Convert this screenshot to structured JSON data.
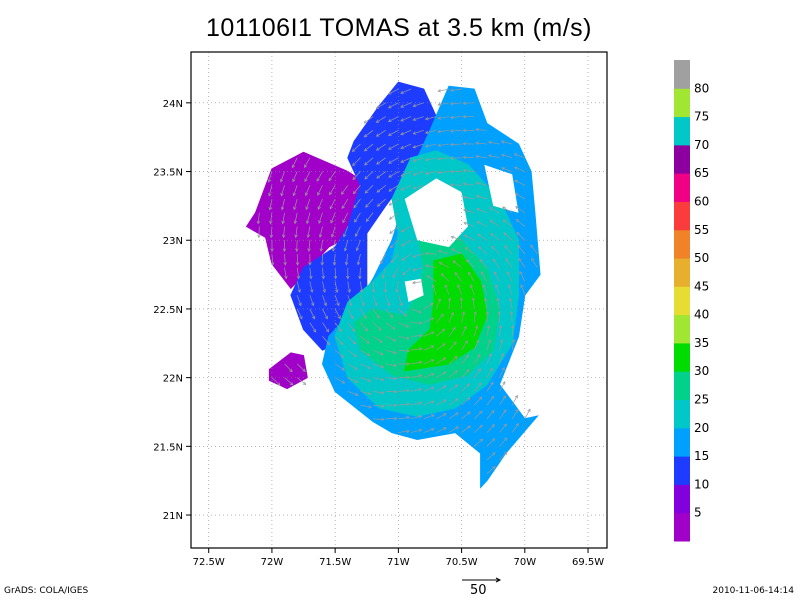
{
  "title": "101106I1 TOMAS at 3.5 km (m/s)",
  "footer": {
    "left": "GrADS: COLA/IGES",
    "right": "2010-11-06-14:14"
  },
  "reference_vector": {
    "label": "50",
    "magnitude": 50
  },
  "chart_data": {
    "type": "heatmap",
    "title": "101106I1 TOMAS at 3.5 km (m/s)",
    "xlabel": "",
    "ylabel": "",
    "x_ticks": [
      "72.5W",
      "72W",
      "71.5W",
      "71W",
      "70.5W",
      "70W",
      "69.5W"
    ],
    "x_tick_values": [
      -72.5,
      -72.0,
      -71.5,
      -71.0,
      -70.5,
      -70.0,
      -69.5
    ],
    "y_ticks": [
      "21N",
      "21.5N",
      "22N",
      "22.5N",
      "23N",
      "23.5N",
      "24N"
    ],
    "y_tick_values": [
      21.0,
      21.5,
      22.0,
      22.5,
      23.0,
      23.5,
      24.0
    ],
    "xlim": [
      -72.64,
      -69.35
    ],
    "ylim": [
      20.76,
      24.37
    ],
    "grid": true,
    "colorbar": {
      "labels": [
        "5",
        "10",
        "15",
        "20",
        "25",
        "30",
        "35",
        "40",
        "45",
        "50",
        "55",
        "60",
        "65",
        "70",
        "75",
        "80"
      ],
      "bins": [
        {
          "color": "#a000c8"
        },
        {
          "color": "#8200dc"
        },
        {
          "color": "#1e3cff"
        },
        {
          "color": "#00a0ff"
        },
        {
          "color": "#00c8c8"
        },
        {
          "color": "#00d28c"
        },
        {
          "color": "#00dc00"
        },
        {
          "color": "#a0e632"
        },
        {
          "color": "#e6dc32"
        },
        {
          "color": "#e6af2d"
        },
        {
          "color": "#f08228"
        },
        {
          "color": "#fa3c3c"
        },
        {
          "color": "#f00082"
        },
        {
          "color": "#8c00a0"
        },
        {
          "color": "#00c8c8"
        },
        {
          "color": "#a0e632"
        },
        {
          "color": "#a0a0a0"
        }
      ]
    },
    "regions": [
      {
        "name": "west-purple",
        "level": 5,
        "color": "#a000c8",
        "polygon": [
          [
            -72.13,
            23.2
          ],
          [
            -72.0,
            23.52
          ],
          [
            -71.75,
            23.64
          ],
          [
            -71.4,
            23.5
          ],
          [
            -71.2,
            23.38
          ],
          [
            -71.25,
            23.1
          ],
          [
            -71.55,
            22.95
          ],
          [
            -71.75,
            22.75
          ],
          [
            -71.85,
            22.65
          ],
          [
            -72.0,
            22.83
          ],
          [
            -72.05,
            23.02
          ],
          [
            -72.2,
            23.1
          ]
        ]
      },
      {
        "name": "south-purple",
        "level": 5,
        "color": "#a000c8",
        "polygon": [
          [
            -72.02,
            22.06
          ],
          [
            -71.85,
            22.18
          ],
          [
            -71.75,
            22.16
          ],
          [
            -71.72,
            22.0
          ],
          [
            -71.88,
            21.92
          ],
          [
            -72.02,
            21.98
          ]
        ]
      },
      {
        "name": "center-purple",
        "level": 5,
        "color": "#a000c8",
        "polygon": [
          [
            -71.02,
            22.62
          ],
          [
            -70.9,
            22.65
          ],
          [
            -70.85,
            22.52
          ],
          [
            -70.92,
            22.45
          ],
          [
            -71.03,
            22.48
          ]
        ]
      },
      {
        "name": "outer-blue",
        "level": 10,
        "color": "#1e3cff",
        "polygon": [
          [
            -71.15,
            23.98
          ],
          [
            -71.0,
            24.15
          ],
          [
            -70.8,
            24.1
          ],
          [
            -70.7,
            23.9
          ],
          [
            -70.6,
            23.7
          ],
          [
            -70.9,
            23.5
          ],
          [
            -71.1,
            23.25
          ],
          [
            -71.25,
            23.05
          ],
          [
            -71.25,
            22.55
          ],
          [
            -71.35,
            22.3
          ],
          [
            -71.6,
            22.2
          ],
          [
            -71.75,
            22.35
          ],
          [
            -71.85,
            22.6
          ],
          [
            -71.75,
            22.8
          ],
          [
            -71.5,
            22.95
          ],
          [
            -71.4,
            23.1
          ],
          [
            -71.3,
            23.4
          ],
          [
            -71.4,
            23.6
          ],
          [
            -71.35,
            23.72
          ]
        ]
      },
      {
        "name": "outer-lightblue",
        "level": 20,
        "color": "#00a0ff",
        "polygon": [
          [
            -70.6,
            24.12
          ],
          [
            -70.4,
            24.1
          ],
          [
            -70.3,
            23.85
          ],
          [
            -70.05,
            23.7
          ],
          [
            -69.95,
            23.5
          ],
          [
            -69.92,
            23.2
          ],
          [
            -69.88,
            22.75
          ],
          [
            -70.0,
            22.6
          ],
          [
            -70.05,
            22.3
          ],
          [
            -70.2,
            21.95
          ],
          [
            -70.0,
            21.7
          ],
          [
            -69.9,
            21.72
          ],
          [
            -70.15,
            21.45
          ],
          [
            -70.3,
            21.25
          ],
          [
            -70.35,
            21.2
          ],
          [
            -70.35,
            21.45
          ],
          [
            -70.55,
            21.6
          ],
          [
            -70.85,
            21.55
          ],
          [
            -71.05,
            21.6
          ],
          [
            -71.2,
            21.68
          ],
          [
            -71.5,
            21.9
          ],
          [
            -71.6,
            22.1
          ],
          [
            -71.55,
            22.3
          ],
          [
            -71.35,
            22.5
          ],
          [
            -71.2,
            22.72
          ],
          [
            -71.05,
            23.0
          ],
          [
            -70.95,
            23.3
          ],
          [
            -70.9,
            23.5
          ],
          [
            -70.75,
            23.8
          ]
        ]
      },
      {
        "name": "teal-band",
        "level": 25,
        "color": "#00c8c8",
        "polygon": [
          [
            -70.9,
            23.6
          ],
          [
            -70.7,
            23.65
          ],
          [
            -70.45,
            23.55
          ],
          [
            -70.2,
            23.3
          ],
          [
            -70.05,
            23.0
          ],
          [
            -70.05,
            22.6
          ],
          [
            -70.1,
            22.25
          ],
          [
            -70.3,
            21.95
          ],
          [
            -70.55,
            21.78
          ],
          [
            -70.85,
            21.72
          ],
          [
            -71.15,
            21.78
          ],
          [
            -71.4,
            22.0
          ],
          [
            -71.5,
            22.3
          ],
          [
            -71.4,
            22.55
          ],
          [
            -71.2,
            22.7
          ],
          [
            -71.05,
            22.85
          ],
          [
            -71.0,
            23.05
          ],
          [
            -71.05,
            23.3
          ]
        ]
      },
      {
        "name": "seagreen-band",
        "level": 30,
        "color": "#00d28c",
        "polygon": [
          [
            -70.85,
            23.05
          ],
          [
            -70.55,
            23.05
          ],
          [
            -70.3,
            22.8
          ],
          [
            -70.2,
            22.5
          ],
          [
            -70.25,
            22.2
          ],
          [
            -70.45,
            22.02
          ],
          [
            -70.75,
            21.95
          ],
          [
            -71.05,
            22.02
          ],
          [
            -71.3,
            22.2
          ],
          [
            -71.35,
            22.4
          ],
          [
            -71.2,
            22.5
          ],
          [
            -70.95,
            22.45
          ],
          [
            -70.85,
            22.6
          ],
          [
            -70.8,
            22.8
          ]
        ]
      },
      {
        "name": "green-core",
        "level": 35,
        "color": "#00dc00",
        "polygon": [
          [
            -70.72,
            22.85
          ],
          [
            -70.5,
            22.9
          ],
          [
            -70.35,
            22.7
          ],
          [
            -70.3,
            22.45
          ],
          [
            -70.4,
            22.22
          ],
          [
            -70.6,
            22.1
          ],
          [
            -70.95,
            22.05
          ],
          [
            -70.92,
            22.2
          ],
          [
            -70.75,
            22.35
          ],
          [
            -70.72,
            22.55
          ]
        ]
      }
    ],
    "holes": [
      {
        "polygon": [
          [
            -70.95,
            23.3
          ],
          [
            -70.7,
            23.45
          ],
          [
            -70.5,
            23.35
          ],
          [
            -70.45,
            23.1
          ],
          [
            -70.6,
            22.95
          ],
          [
            -70.85,
            23.0
          ]
        ]
      },
      {
        "polygon": [
          [
            -70.32,
            23.55
          ],
          [
            -70.1,
            23.48
          ],
          [
            -70.05,
            23.2
          ],
          [
            -70.25,
            23.25
          ]
        ]
      },
      {
        "polygon": [
          [
            -70.95,
            22.7
          ],
          [
            -70.82,
            22.72
          ],
          [
            -70.8,
            22.6
          ],
          [
            -70.92,
            22.55
          ]
        ]
      }
    ]
  }
}
